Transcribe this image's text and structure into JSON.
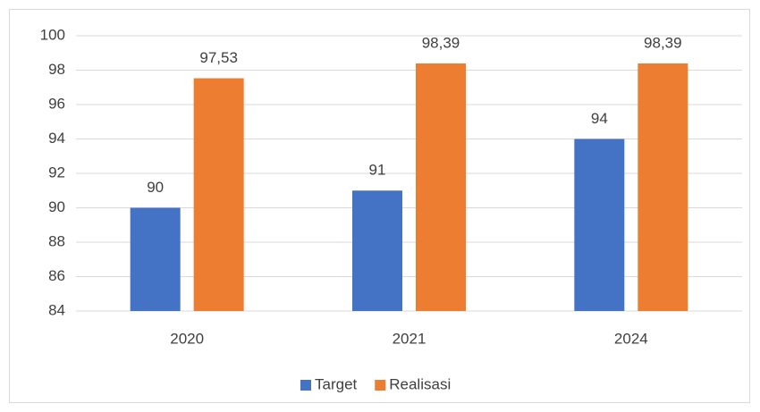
{
  "chart_data": {
    "type": "bar",
    "categories": [
      "2020",
      "2021",
      "2024"
    ],
    "series": [
      {
        "name": "Target",
        "color": "#4472c4",
        "values": [
          90,
          91,
          94
        ]
      },
      {
        "name": "Realisasi",
        "color": "#ed7d31",
        "values": [
          97.53,
          98.39,
          98.39
        ],
        "value_labels": [
          "97,53",
          "98,39",
          "98,39"
        ]
      }
    ],
    "ylim": [
      84,
      100
    ],
    "yticks": [
      84,
      86,
      88,
      90,
      92,
      94,
      96,
      98,
      100
    ],
    "grid": true,
    "legend": "bottom"
  }
}
